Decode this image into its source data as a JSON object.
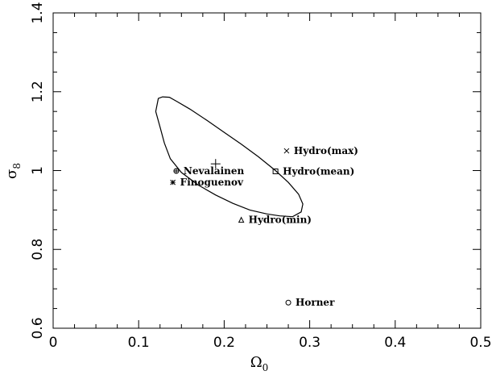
{
  "chart_data": {
    "type": "scatter",
    "title": "",
    "xlabel": "Ω",
    "xlabel_sub": "0",
    "ylabel": "σ",
    "ylabel_sub": "8",
    "xlim": [
      0,
      0.5
    ],
    "ylim": [
      0.6,
      1.4
    ],
    "x_ticks": [
      "0",
      "0.1",
      "0.2",
      "0.3",
      "0.4",
      "0.5"
    ],
    "y_ticks": [
      "0.6",
      "0.8",
      "1",
      "1.2",
      "1.4"
    ],
    "grid": false,
    "legend": "none",
    "points": [
      {
        "label": "Hydro(max)",
        "marker": "x-cross",
        "x": 0.273,
        "y": 1.05
      },
      {
        "label": "Hydro(mean)",
        "marker": "square",
        "x": 0.26,
        "y": 0.998
      },
      {
        "label": "Nevalainen",
        "marker": "circle-plus",
        "x": 0.144,
        "y": 0.999
      },
      {
        "label": "Finoguenov",
        "marker": "asterisk",
        "x": 0.14,
        "y": 0.97
      },
      {
        "label": "Hydro(min)",
        "marker": "triangle",
        "x": 0.22,
        "y": 0.875
      },
      {
        "label": "Horner",
        "marker": "circle",
        "x": 0.275,
        "y": 0.665
      }
    ],
    "best_fit": {
      "marker": "plus",
      "x": 0.19,
      "y": 1.017
    },
    "contour": [
      [
        0.123,
        1.183
      ],
      [
        0.128,
        1.187
      ],
      [
        0.136,
        1.186
      ],
      [
        0.145,
        1.175
      ],
      [
        0.16,
        1.156
      ],
      [
        0.18,
        1.127
      ],
      [
        0.2,
        1.097
      ],
      [
        0.22,
        1.067
      ],
      [
        0.24,
        1.035
      ],
      [
        0.26,
        1.0
      ],
      [
        0.275,
        0.97
      ],
      [
        0.287,
        0.94
      ],
      [
        0.292,
        0.915
      ],
      [
        0.29,
        0.895
      ],
      [
        0.28,
        0.883
      ],
      [
        0.265,
        0.885
      ],
      [
        0.25,
        0.89
      ],
      [
        0.23,
        0.9
      ],
      [
        0.21,
        0.917
      ],
      [
        0.19,
        0.938
      ],
      [
        0.17,
        0.963
      ],
      [
        0.15,
        0.995
      ],
      [
        0.137,
        1.03
      ],
      [
        0.13,
        1.07
      ],
      [
        0.125,
        1.11
      ],
      [
        0.12,
        1.15
      ],
      [
        0.123,
        1.183
      ]
    ]
  }
}
